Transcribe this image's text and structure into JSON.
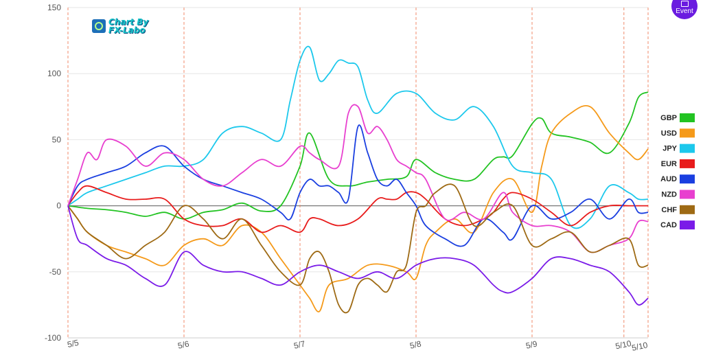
{
  "logo": {
    "line1": "Chart By",
    "line2": "FX-Labo"
  },
  "event_button": {
    "label": "Event",
    "icon": "calendar-icon",
    "color": "#6a1be0"
  },
  "chart_data": {
    "type": "line",
    "ylim": [
      -100,
      150
    ],
    "yticks": [
      150,
      100,
      50,
      0,
      -50,
      -100
    ],
    "xlim": [
      0,
      120
    ],
    "x_ticks": [
      {
        "label": "5/5",
        "x": 0
      },
      {
        "label": "5/6",
        "x": 24
      },
      {
        "label": "5/7",
        "x": 48
      },
      {
        "label": "5/8",
        "x": 72
      },
      {
        "label": "5/9",
        "x": 96
      },
      {
        "label": "5/10",
        "x": 115
      },
      {
        "label": "5/10",
        "x": 120
      }
    ],
    "grid": "horizontal",
    "event_lines": [
      0,
      24,
      48,
      72,
      96,
      115,
      120
    ],
    "legend_position": "right",
    "series": [
      {
        "name": "GBP",
        "color": "#22c322",
        "x": [
          0,
          4,
          8,
          12,
          16,
          20,
          24,
          28,
          32,
          36,
          40,
          44,
          48,
          50,
          54,
          58,
          62,
          66,
          70,
          72,
          76,
          80,
          84,
          88,
          90,
          92,
          96,
          98,
          100,
          104,
          108,
          112,
          116,
          118,
          120
        ],
        "y": [
          0,
          -2,
          -3,
          -5,
          -8,
          -5,
          -10,
          -5,
          -3,
          2,
          -4,
          0,
          30,
          55,
          20,
          15,
          18,
          20,
          22,
          35,
          25,
          20,
          20,
          35,
          37,
          38,
          62,
          66,
          55,
          52,
          48,
          40,
          62,
          82,
          86
        ]
      },
      {
        "name": "USD",
        "color": "#f59a1a",
        "x": [
          0,
          2,
          4,
          8,
          12,
          16,
          20,
          24,
          28,
          32,
          36,
          40,
          44,
          48,
          50,
          52,
          54,
          58,
          62,
          66,
          70,
          72,
          74,
          76,
          80,
          84,
          88,
          92,
          96,
          98,
          100,
          104,
          108,
          112,
          116,
          118,
          120
        ],
        "y": [
          0,
          -10,
          -20,
          -30,
          -35,
          -40,
          -45,
          -30,
          -25,
          -30,
          -15,
          -20,
          -40,
          -60,
          -70,
          -80,
          -60,
          -55,
          -45,
          -45,
          -50,
          -55,
          -30,
          -20,
          -10,
          -20,
          10,
          20,
          -5,
          30,
          55,
          70,
          75,
          55,
          40,
          35,
          43
        ]
      },
      {
        "name": "JPY",
        "color": "#1cc8ec",
        "x": [
          0,
          2,
          4,
          8,
          12,
          16,
          20,
          24,
          28,
          32,
          36,
          40,
          44,
          46,
          48,
          50,
          52,
          54,
          56,
          58,
          60,
          62,
          64,
          68,
          72,
          76,
          80,
          84,
          88,
          92,
          96,
          100,
          104,
          108,
          112,
          116,
          118,
          120
        ],
        "y": [
          0,
          5,
          10,
          15,
          20,
          25,
          30,
          30,
          35,
          55,
          60,
          55,
          50,
          80,
          110,
          120,
          95,
          100,
          110,
          108,
          105,
          80,
          70,
          85,
          85,
          70,
          65,
          75,
          60,
          30,
          25,
          20,
          -15,
          -10,
          15,
          10,
          5,
          5
        ]
      },
      {
        "name": "EUR",
        "color": "#e81b1b",
        "x": [
          0,
          2,
          4,
          8,
          12,
          16,
          20,
          24,
          28,
          32,
          36,
          40,
          44,
          48,
          50,
          52,
          56,
          60,
          64,
          66,
          68,
          70,
          72,
          74,
          78,
          82,
          86,
          88,
          90,
          92,
          96,
          100,
          104,
          108,
          112,
          116,
          118,
          120
        ],
        "y": [
          0,
          10,
          15,
          10,
          5,
          5,
          5,
          -10,
          -15,
          -15,
          -10,
          -20,
          -15,
          -20,
          -10,
          -10,
          -15,
          -10,
          5,
          5,
          5,
          10,
          10,
          5,
          -10,
          -15,
          -10,
          -5,
          5,
          10,
          5,
          -5,
          -15,
          -5,
          0,
          0,
          0,
          0
        ]
      },
      {
        "name": "AUD",
        "color": "#1a3fe0",
        "x": [
          0,
          2,
          4,
          8,
          12,
          16,
          20,
          24,
          28,
          32,
          36,
          40,
          44,
          46,
          48,
          50,
          52,
          54,
          56,
          58,
          60,
          62,
          64,
          66,
          68,
          70,
          72,
          74,
          78,
          82,
          86,
          90,
          92,
          96,
          100,
          104,
          108,
          112,
          116,
          118,
          120
        ],
        "y": [
          0,
          15,
          20,
          25,
          30,
          40,
          45,
          30,
          20,
          15,
          10,
          5,
          -5,
          -10,
          10,
          20,
          15,
          15,
          10,
          5,
          60,
          40,
          20,
          15,
          20,
          10,
          0,
          -15,
          -25,
          -30,
          -10,
          -20,
          -25,
          0,
          -10,
          -5,
          5,
          -10,
          5,
          -5,
          -5
        ]
      },
      {
        "name": "NZD",
        "color": "#e83fcf",
        "x": [
          0,
          2,
          4,
          6,
          8,
          12,
          16,
          20,
          24,
          28,
          32,
          36,
          40,
          44,
          48,
          50,
          52,
          56,
          58,
          60,
          62,
          64,
          66,
          68,
          70,
          72,
          74,
          78,
          82,
          86,
          90,
          92,
          96,
          100,
          104,
          108,
          112,
          116,
          118,
          120
        ],
        "y": [
          0,
          20,
          40,
          35,
          50,
          45,
          30,
          40,
          35,
          20,
          15,
          25,
          35,
          30,
          45,
          40,
          35,
          30,
          70,
          75,
          55,
          60,
          50,
          35,
          30,
          25,
          20,
          -10,
          -5,
          -10,
          10,
          -5,
          -15,
          -15,
          -20,
          -35,
          -30,
          -25,
          -12,
          -12
        ]
      },
      {
        "name": "CHF",
        "color": "#9e6a14",
        "x": [
          0,
          2,
          4,
          8,
          12,
          16,
          20,
          24,
          28,
          32,
          36,
          40,
          44,
          48,
          50,
          52,
          54,
          56,
          58,
          60,
          62,
          64,
          66,
          68,
          70,
          72,
          74,
          76,
          80,
          84,
          88,
          92,
          96,
          100,
          104,
          108,
          112,
          116,
          118,
          120
        ],
        "y": [
          0,
          -10,
          -20,
          -30,
          -40,
          -30,
          -20,
          0,
          -10,
          -25,
          -10,
          -30,
          -50,
          -60,
          -40,
          -35,
          -50,
          -75,
          -80,
          -60,
          -55,
          -60,
          -65,
          -50,
          -45,
          -5,
          0,
          10,
          15,
          -15,
          -5,
          0,
          -30,
          -25,
          -20,
          -35,
          -30,
          -25,
          -45,
          -45
        ]
      },
      {
        "name": "CAD",
        "color": "#7a1be8",
        "x": [
          0,
          2,
          4,
          8,
          12,
          16,
          20,
          24,
          28,
          32,
          36,
          40,
          44,
          48,
          52,
          56,
          60,
          64,
          68,
          72,
          76,
          80,
          84,
          88,
          90,
          92,
          96,
          100,
          104,
          108,
          112,
          116,
          118,
          120
        ],
        "y": [
          0,
          -25,
          -30,
          -40,
          -45,
          -55,
          -60,
          -35,
          -45,
          -50,
          -50,
          -55,
          -60,
          -50,
          -45,
          -50,
          -55,
          -50,
          -55,
          -45,
          -40,
          -40,
          -45,
          -60,
          -65,
          -65,
          -55,
          -40,
          -40,
          -45,
          -50,
          -65,
          -75,
          -70
        ]
      }
    ]
  }
}
